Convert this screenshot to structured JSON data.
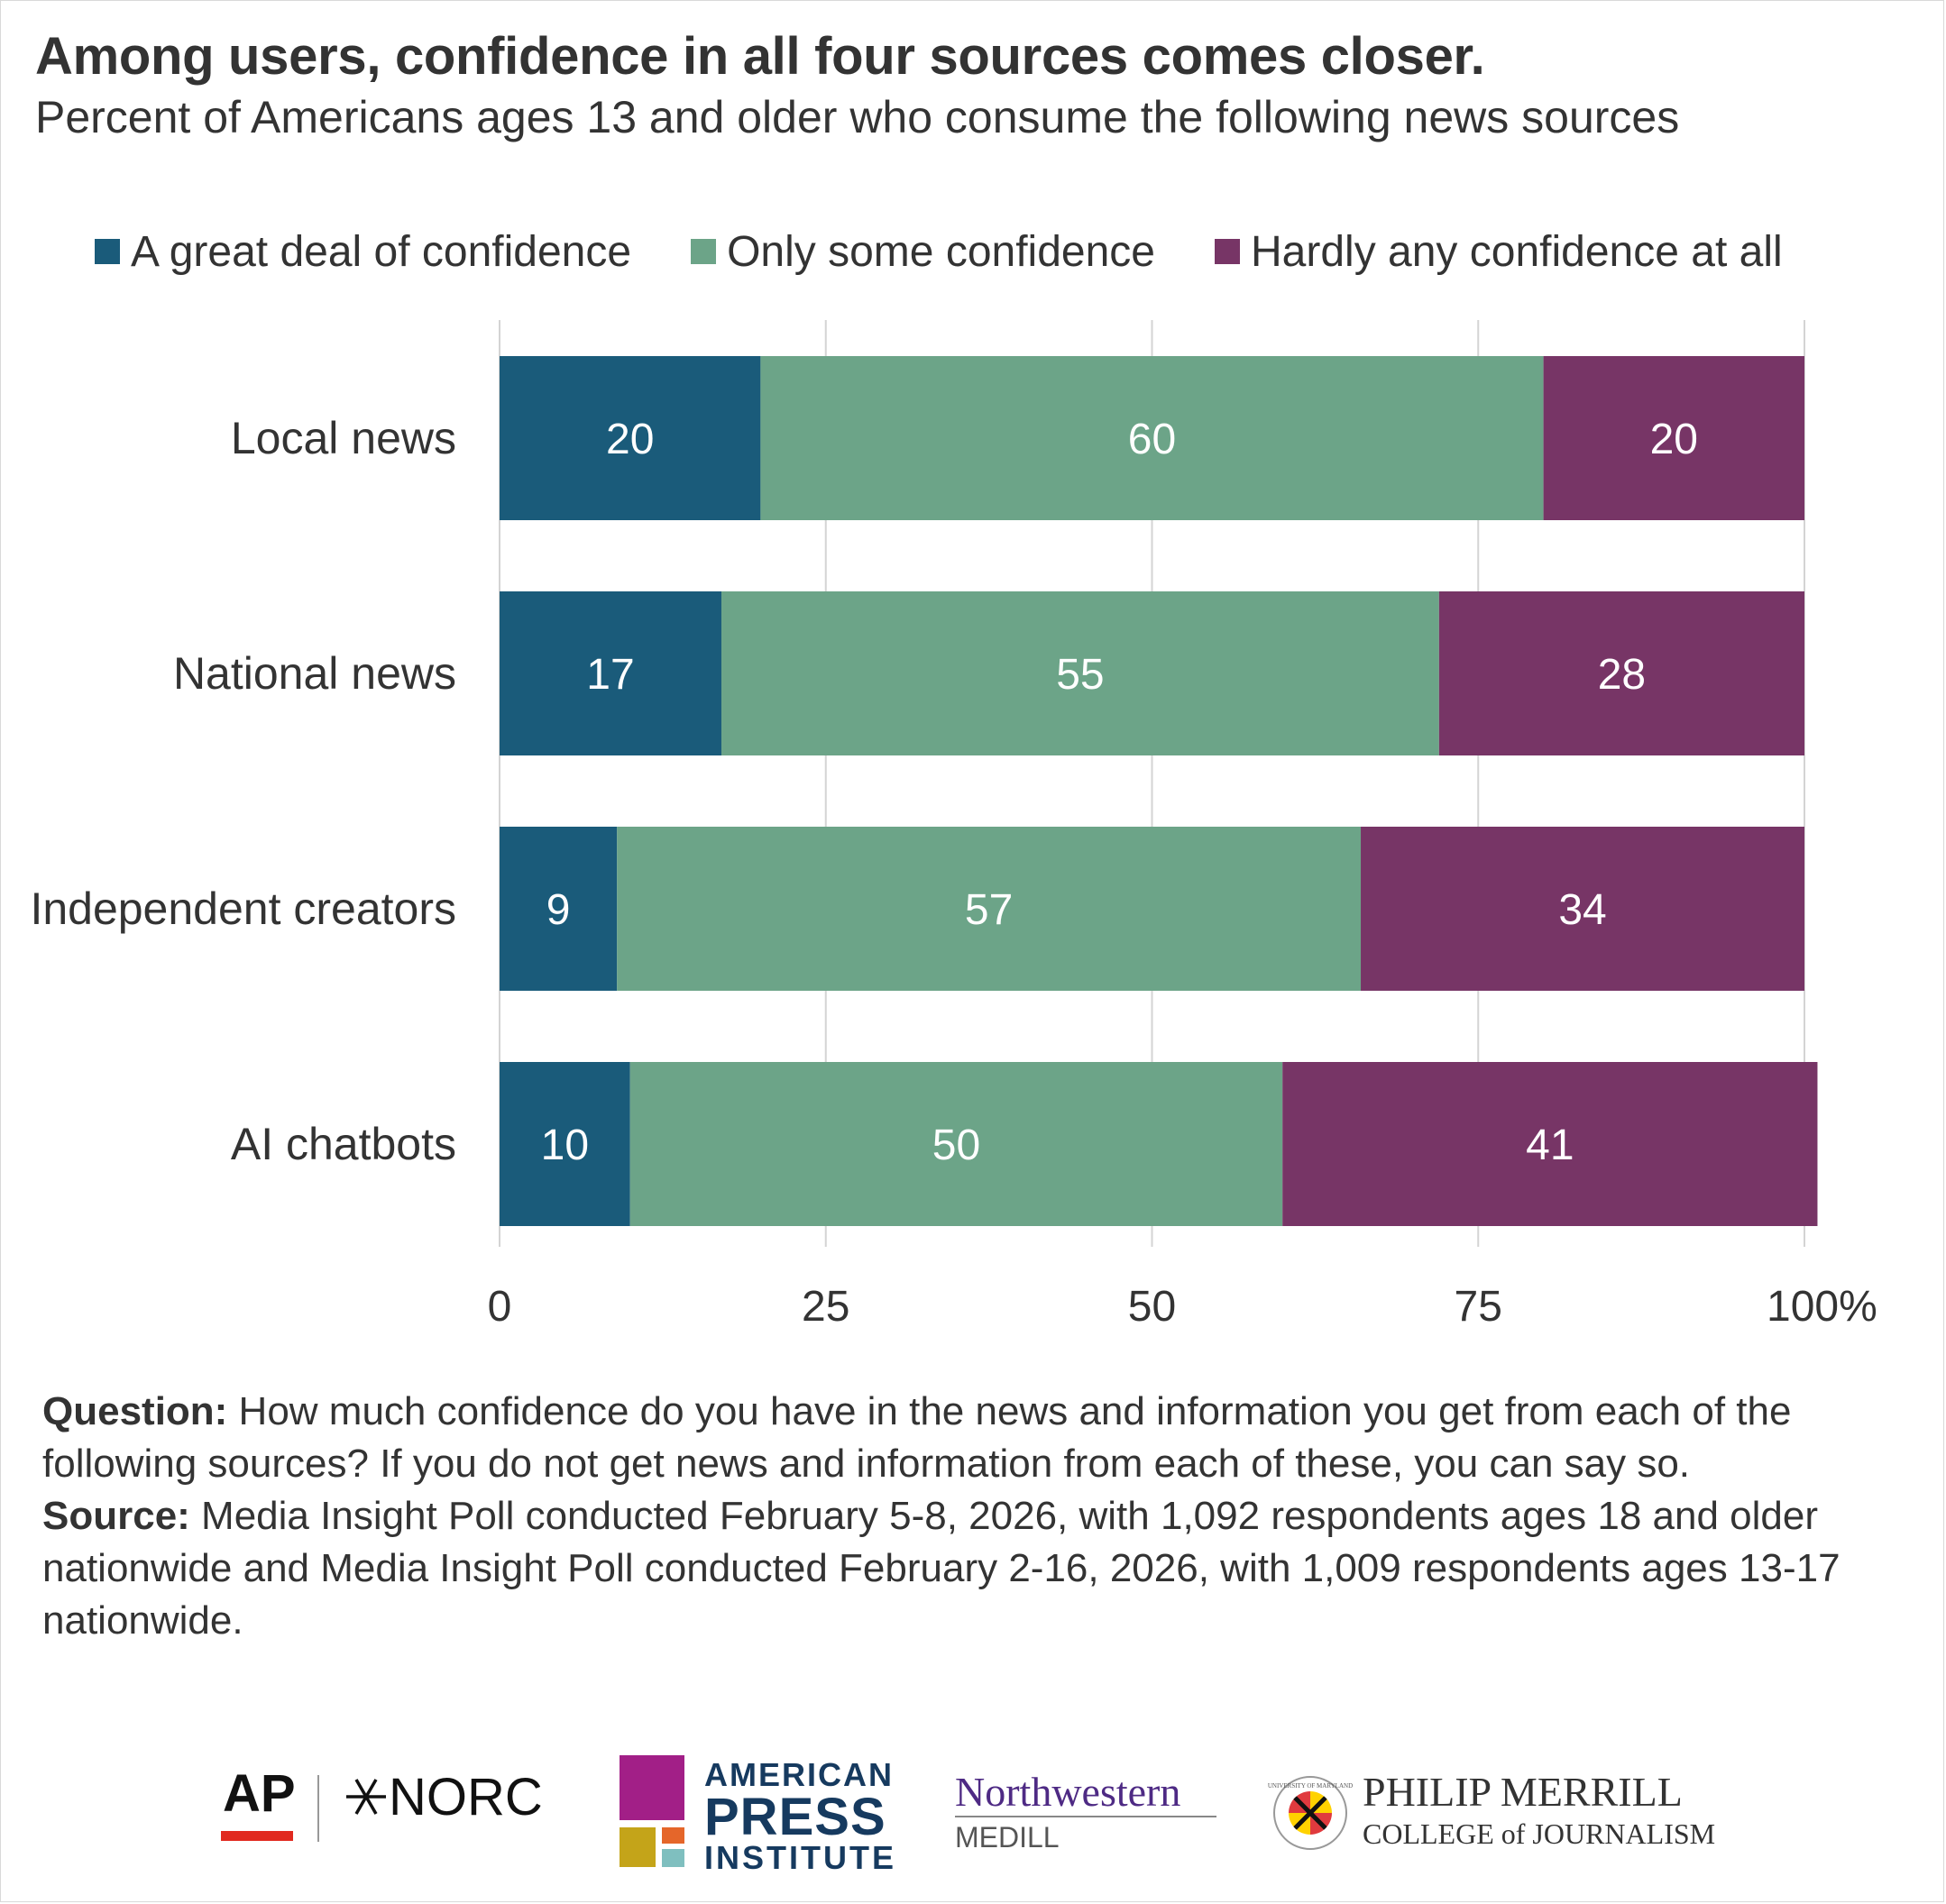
{
  "title": "Among users, confidence in all four sources comes closer.",
  "subtitle": "Percent of Americans ages 13 and older who consume the following news sources",
  "colors": {
    "great_deal": "#1a5b7a",
    "only_some": "#6ca488",
    "hardly_any": "#773566",
    "grid": "#d4d4d4",
    "text": "#333333"
  },
  "chart_data": {
    "type": "bar",
    "orientation": "horizontal",
    "stacked": true,
    "categories": [
      "Local news",
      "National news",
      "Independent creators",
      "AI chatbots"
    ],
    "series": [
      {
        "name": "A great deal of confidence",
        "values": [
          20,
          17,
          9,
          10
        ]
      },
      {
        "name": "Only some confidence",
        "values": [
          60,
          55,
          57,
          50
        ]
      },
      {
        "name": "Hardly any confidence at all",
        "values": [
          20,
          28,
          34,
          41
        ]
      }
    ],
    "xlim": [
      0,
      100
    ],
    "xticks": [
      "0",
      "25",
      "50",
      "75",
      "100%"
    ],
    "xtick_values": [
      0,
      25,
      50,
      75,
      100
    ],
    "legend_position": "top",
    "grid": true
  },
  "notes": {
    "question_label": "Question:",
    "question_text": " How much confidence do you have in the news and information you get from each of the following sources? If you do not get news and information from each of these, you can say so.",
    "source_label": "Source:",
    "source_text": " Media Insight Poll conducted February 5-8, 2026, with 1,092 respondents ages 18 and older nationwide and Media Insight Poll conducted February 2-16, 2026, with 1,009 respondents ages 13-17 nationwide."
  },
  "logos": {
    "ap": "AP",
    "norc": "NORC",
    "api_line1": "AMERICAN",
    "api_line2": "PRESS",
    "api_line3": "INSTITUTE",
    "northwestern": "Northwestern",
    "medill": "MEDILL",
    "merrill_line1": "PHILIP MERRILL",
    "merrill_line2": "COLLEGE of JOURNALISM",
    "umd_seal_text": "UNIVERSITY OF MARYLAND"
  }
}
